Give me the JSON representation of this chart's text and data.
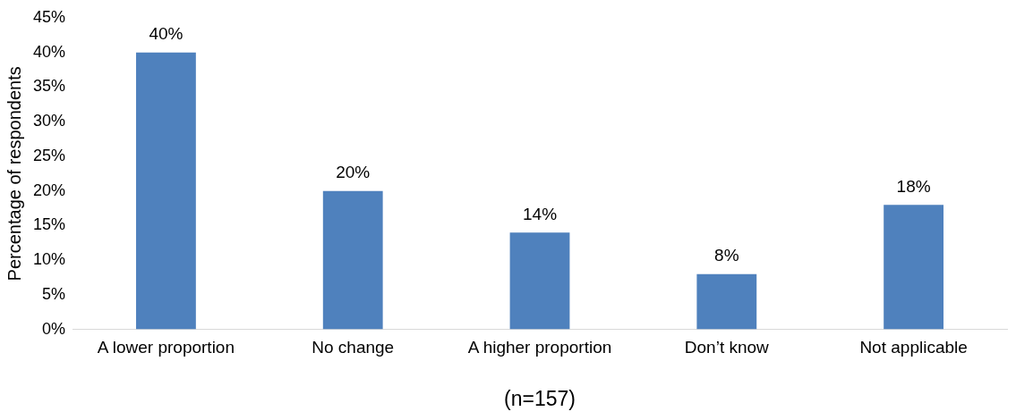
{
  "chart_data": {
    "type": "bar",
    "xlabel": "(n=157)",
    "ylabel": "Percentage of respondents",
    "categories": [
      "A lower proportion",
      "No change",
      "A higher proportion",
      "Don’t know",
      "Not applicable"
    ],
    "values": [
      40,
      20,
      14,
      8,
      18
    ],
    "value_labels": [
      "40%",
      "20%",
      "14%",
      "8%",
      "18%"
    ],
    "color": "#4f81bd",
    "ylim": [
      0,
      45
    ],
    "yticks": [
      {
        "value": 0,
        "label": "0%"
      },
      {
        "value": 5,
        "label": "5%"
      },
      {
        "value": 10,
        "label": "10%"
      },
      {
        "value": 15,
        "label": "15%"
      },
      {
        "value": 20,
        "label": "20%"
      },
      {
        "value": 25,
        "label": "25%"
      },
      {
        "value": 30,
        "label": "30%"
      },
      {
        "value": 35,
        "label": "35%"
      },
      {
        "value": 40,
        "label": "40%"
      },
      {
        "value": 45,
        "label": "45%"
      }
    ],
    "grid": false,
    "legend": false
  }
}
